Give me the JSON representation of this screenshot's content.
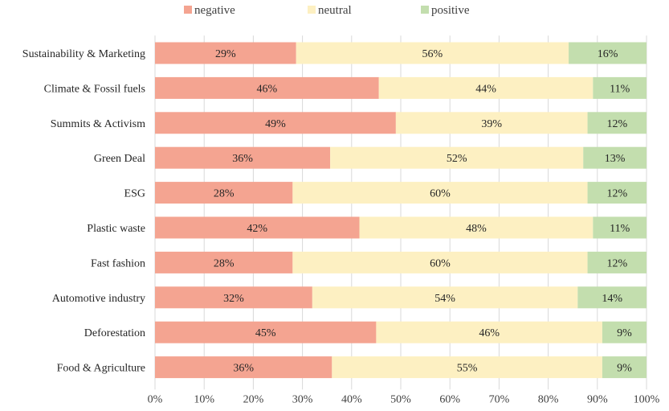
{
  "chart_data": {
    "type": "bar",
    "orientation": "horizontal",
    "stacked": "percent",
    "categories": [
      "Sustainability & Marketing",
      "Climate & Fossil fuels",
      "Summits & Activism",
      "Green Deal",
      "ESG",
      "Plastic waste",
      "Fast fashion",
      "Automotive industry",
      "Deforestation",
      "Food & Agriculture"
    ],
    "series": [
      {
        "name": "negative",
        "color": "#f4a491",
        "values": [
          29,
          46,
          49,
          36,
          28,
          42,
          28,
          32,
          45,
          36
        ]
      },
      {
        "name": "neutral",
        "color": "#fdf0c2",
        "values": [
          56,
          44,
          39,
          52,
          60,
          48,
          60,
          54,
          46,
          55
        ]
      },
      {
        "name": "positive",
        "color": "#c3deae",
        "values": [
          16,
          11,
          12,
          13,
          12,
          11,
          12,
          14,
          9,
          9
        ]
      }
    ],
    "data_labels": [
      [
        "29%",
        "46%",
        "49%",
        "36%",
        "28%",
        "42%",
        "28%",
        "32%",
        "45%",
        "36%"
      ],
      [
        "56%",
        "44%",
        "39%",
        "52%",
        "60%",
        "48%",
        "60%",
        "54%",
        "46%",
        "55%"
      ],
      [
        "16%",
        "11%",
        "12%",
        "13%",
        "12%",
        "11%",
        "12%",
        "14%",
        "9%",
        "9%"
      ]
    ],
    "x_ticks": [
      "0%",
      "10%",
      "20%",
      "30%",
      "40%",
      "50%",
      "60%",
      "70%",
      "80%",
      "90%",
      "100%"
    ],
    "xlim": [
      0,
      100
    ],
    "grid": "vertical",
    "legend_position": "top-center",
    "title": "",
    "xlabel": "",
    "ylabel": ""
  }
}
